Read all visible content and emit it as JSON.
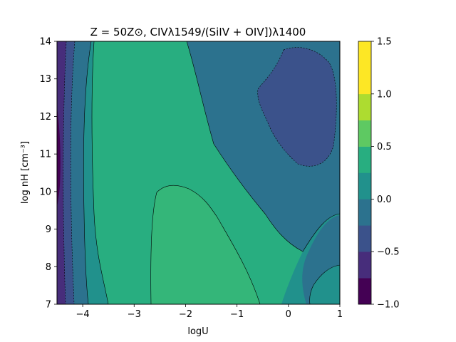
{
  "chart_data": {
    "type": "contour",
    "title": "Z = 50Z⊙, CIVλ1549/(SiIV + OIV])λ1400",
    "xlabel": "logU",
    "ylabel": "log nH [cm⁻³]",
    "xlim": [
      -4.5,
      1
    ],
    "ylim": [
      7,
      14
    ],
    "xticks": [
      -4,
      -3,
      -2,
      -1,
      0,
      1
    ],
    "yticks": [
      7,
      8,
      9,
      10,
      11,
      12,
      13,
      14
    ],
    "xtick_labels": [
      "−4",
      "−3",
      "−2",
      "−1",
      "0",
      "1"
    ],
    "ytick_labels": [
      "7",
      "8",
      "9",
      "10",
      "11",
      "12",
      "13",
      "14"
    ],
    "levels": [
      -1.0,
      -0.75,
      -0.5,
      -0.25,
      0.0,
      0.25,
      0.5,
      0.75,
      1.0,
      1.25,
      1.5
    ],
    "level_colors": [
      "#440154",
      "#472d7b",
      "#3b528b",
      "#2c728e",
      "#21918c",
      "#28ae80",
      "#5ec962",
      "#addc30",
      "#fde725",
      "#fde725"
    ],
    "colorbar": {
      "ticks": [
        -1.0,
        -0.5,
        0.0,
        0.5,
        1.0,
        1.5
      ],
      "tick_labels": [
        "−1.0",
        "−0.5",
        "0.0",
        "0.5",
        "1.0",
        "1.5"
      ]
    },
    "regions": [
      {
        "level_range": [
          -1.0,
          -0.75
        ],
        "location": "far left edge, logU ≈ -4.5 to -4.4"
      },
      {
        "level_range": [
          -0.75,
          -0.5
        ],
        "location": "left strip, logU ≈ -4.4 to -4.25"
      },
      {
        "level_range": [
          -0.5,
          -0.25
        ],
        "location": "left strip, logU ≈ -4.25 to -4.05"
      },
      {
        "level_range": [
          -0.25,
          0.0
        ],
        "location": "left strip logU ≈ -4.1 to -3.8; top-right and right-side band"
      },
      {
        "level_range": [
          0.0,
          0.25
        ],
        "location": "vertical band logU ≈ -3.9 to -3.5; right-centre diagonal band"
      },
      {
        "level_range": [
          0.25,
          0.5
        ],
        "location": "central region logU ≈ -3.6 to -2.2 at high density, widening downwards"
      },
      {
        "level_range": [
          0.5,
          0.75
        ],
        "location": "lower-centre plateau logU ≈ -2.7 to -0.5, log nH ≈ 7 to 10.2"
      },
      {
        "level_range": [
          -0.5,
          -0.25
        ],
        "location": "upper-right island logU ≈ -0.7 to 1, log nH ≈ 11 to 13.9"
      }
    ]
  }
}
